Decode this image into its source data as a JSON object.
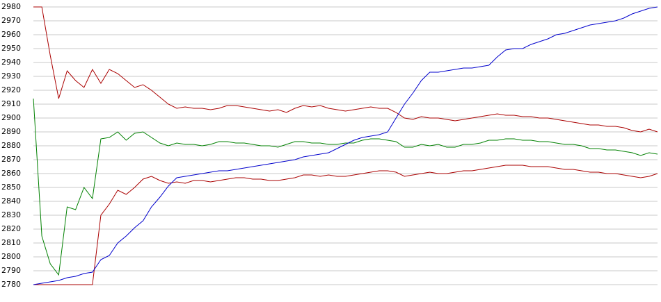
{
  "chart_data": {
    "type": "line",
    "ylim": [
      2780,
      2980
    ],
    "yticks": [
      2780,
      2790,
      2800,
      2810,
      2820,
      2830,
      2840,
      2850,
      2860,
      2870,
      2880,
      2890,
      2900,
      2910,
      2920,
      2930,
      2940,
      2950,
      2960,
      2970,
      2980
    ],
    "grid": true,
    "series": [
      {
        "color": "#aa0000",
        "values": [
          2980,
          2980,
          2945,
          2914,
          2934,
          2927,
          2922,
          2935,
          2925,
          2935,
          2932,
          2927,
          2922,
          2924,
          2920,
          2915,
          2910,
          2907,
          2908,
          2907,
          2907,
          2906,
          2907,
          2909,
          2909,
          2908,
          2907,
          2906,
          2905,
          2906,
          2904,
          2907,
          2909,
          2908,
          2909,
          2907,
          2906,
          2905,
          2906,
          2907,
          2908,
          2907,
          2907,
          2904,
          2900,
          2899,
          2901,
          2900,
          2900,
          2899,
          2898,
          2899,
          2900,
          2901,
          2902,
          2903,
          2902,
          2902,
          2901,
          2901,
          2900,
          2900,
          2899,
          2898,
          2897,
          2896,
          2895,
          2895,
          2894,
          2894,
          2893,
          2891,
          2890,
          2892,
          2890
        ]
      },
      {
        "color": "#008000",
        "values": [
          2914,
          2815,
          2795,
          2787,
          2836,
          2834,
          2850,
          2842,
          2885,
          2886,
          2890,
          2884,
          2889,
          2890,
          2886,
          2882,
          2880,
          2882,
          2881,
          2881,
          2880,
          2881,
          2883,
          2883,
          2882,
          2882,
          2881,
          2880,
          2880,
          2879,
          2881,
          2883,
          2883,
          2882,
          2882,
          2881,
          2881,
          2882,
          2882,
          2884,
          2885,
          2885,
          2884,
          2883,
          2879,
          2879,
          2881,
          2880,
          2881,
          2879,
          2879,
          2881,
          2881,
          2882,
          2884,
          2884,
          2885,
          2885,
          2884,
          2884,
          2883,
          2883,
          2882,
          2881,
          2881,
          2880,
          2878,
          2878,
          2877,
          2877,
          2876,
          2875,
          2873,
          2875,
          2874
        ]
      },
      {
        "color": "#aa0000",
        "values": [
          2780,
          2780,
          2780,
          2780,
          2780,
          2780,
          2780,
          2780,
          2830,
          2838,
          2848,
          2845,
          2850,
          2856,
          2858,
          2855,
          2853,
          2854,
          2853,
          2855,
          2855,
          2854,
          2855,
          2856,
          2857,
          2857,
          2856,
          2856,
          2855,
          2855,
          2856,
          2857,
          2859,
          2859,
          2858,
          2859,
          2858,
          2858,
          2859,
          2860,
          2861,
          2862,
          2862,
          2861,
          2858,
          2859,
          2860,
          2861,
          2860,
          2860,
          2861,
          2862,
          2862,
          2863,
          2864,
          2865,
          2866,
          2866,
          2866,
          2865,
          2865,
          2865,
          2864,
          2863,
          2863,
          2862,
          2861,
          2861,
          2860,
          2860,
          2859,
          2858,
          2857,
          2858,
          2860
        ]
      },
      {
        "color": "#0000cc",
        "values": [
          2780,
          2781,
          2782,
          2783,
          2785,
          2786,
          2788,
          2789,
          2798,
          2801,
          2810,
          2815,
          2821,
          2826,
          2836,
          2843,
          2851,
          2857,
          2858,
          2859,
          2860,
          2861,
          2862,
          2862,
          2863,
          2864,
          2865,
          2866,
          2867,
          2868,
          2869,
          2870,
          2872,
          2873,
          2874,
          2875,
          2878,
          2881,
          2884,
          2886,
          2887,
          2888,
          2890,
          2900,
          2910,
          2918,
          2927,
          2933,
          2933,
          2934,
          2935,
          2936,
          2936,
          2937,
          2938,
          2944,
          2949,
          2950,
          2950,
          2953,
          2955,
          2957,
          2960,
          2961,
          2963,
          2965,
          2967,
          2968,
          2969,
          2970,
          2972,
          2975,
          2977,
          2979,
          2980
        ]
      }
    ]
  }
}
